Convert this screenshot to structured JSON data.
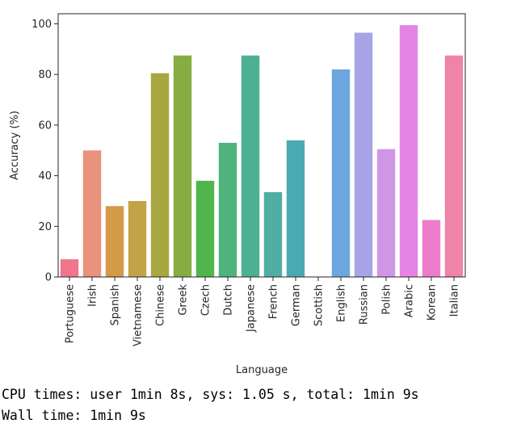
{
  "chart_data": {
    "type": "bar",
    "categories": [
      "Portuguese",
      "Irish",
      "Spanish",
      "Vietnamese",
      "Chinese",
      "Greek",
      "Czech",
      "Dutch",
      "Japanese",
      "French",
      "German",
      "Scottish",
      "English",
      "Russian",
      "Polish",
      "Arabic",
      "Korean",
      "Italian"
    ],
    "values": [
      7,
      50,
      28,
      30,
      80.5,
      87.5,
      38,
      53,
      87.5,
      33.5,
      54,
      0,
      82,
      96.5,
      50.5,
      99.5,
      22.5,
      87.5
    ],
    "colors": [
      "#f0758d",
      "#e9927c",
      "#d59a47",
      "#c4a247",
      "#a7a741",
      "#85ad42",
      "#50b54a",
      "#4fb37c",
      "#4eb092",
      "#4faea3",
      "#4ba9b3",
      "#4ca3c1",
      "#6ca6de",
      "#a6a3e6",
      "#d096e6",
      "#e584e3",
      "#ee7dc9",
      "#ef83a8"
    ],
    "xlabel": "Language",
    "ylabel": "Accuracy (%)",
    "ylim": [
      0,
      104
    ],
    "yticks": [
      0,
      20,
      40,
      60,
      80,
      100
    ],
    "grid": false
  },
  "output": {
    "cpu_line": "CPU times: user 1min 8s, sys: 1.05 s, total: 1min 9s",
    "wall_line": "Wall time: 1min 9s"
  }
}
